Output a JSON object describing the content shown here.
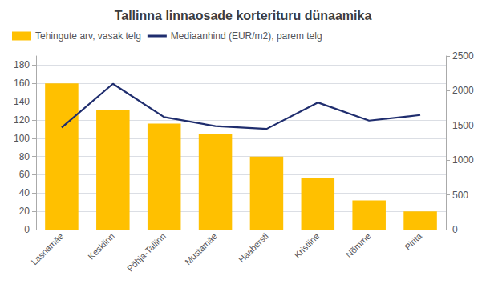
{
  "chart_data": {
    "type": "bar",
    "title": "Tallinna linnaosade korterituru dünaamika",
    "categories": [
      "Lasnamäe",
      "Kesklinn",
      "Põhja-Tallinn",
      "Mustamäe",
      "Haabersti",
      "Kristiine",
      "Nõmme",
      "Pirita"
    ],
    "series": [
      {
        "name": "Tehingute arv, vasak telg",
        "type": "bar",
        "color": "#FFC000",
        "values": [
          160,
          131,
          116,
          105,
          80,
          57,
          32,
          20
        ]
      },
      {
        "name": "Mediaanhind (EUR/m2), parem telg",
        "type": "line",
        "axis": "y2",
        "color": "#1F2D6E",
        "values": [
          1470,
          2100,
          1620,
          1490,
          1450,
          1830,
          1570,
          1650
        ]
      }
    ],
    "ylim": [
      0,
      190
    ],
    "yticks": [
      0,
      20,
      40,
      60,
      80,
      100,
      120,
      140,
      160,
      180
    ],
    "y2lim": [
      0,
      2500
    ],
    "y2ticks": [
      0,
      500,
      1000,
      1500,
      2000,
      2500
    ],
    "grid": true,
    "legend": "upper left"
  }
}
